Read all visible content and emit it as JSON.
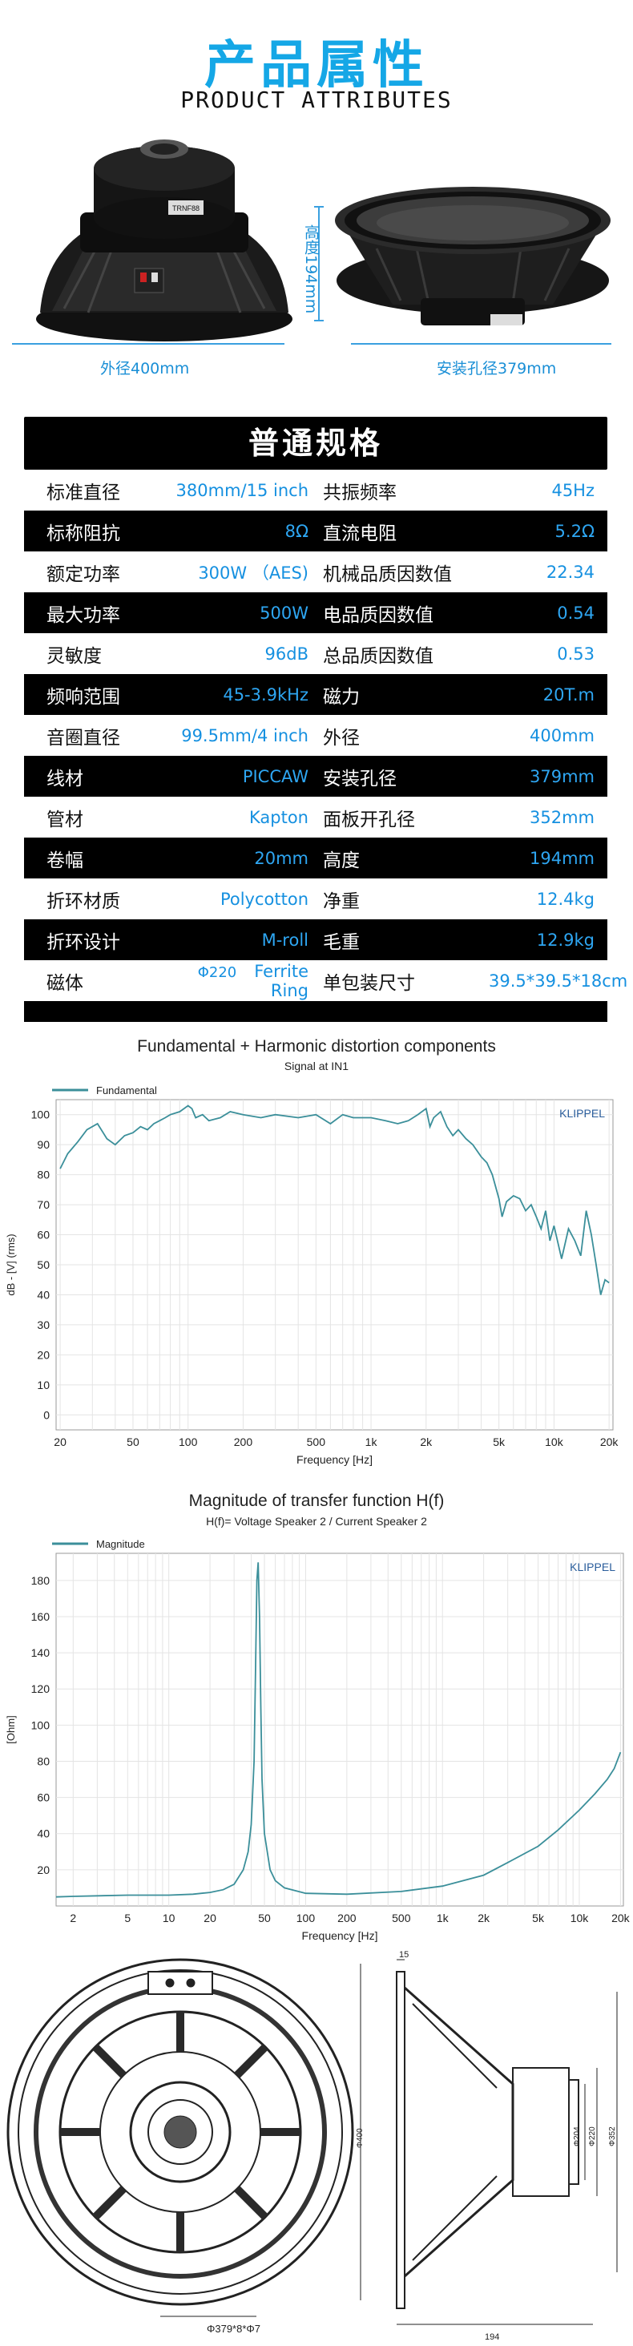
{
  "header": {
    "title_cn": "产品属性",
    "title_en": "PRODUCT ATTRIBUTES"
  },
  "product": {
    "label_height": "高度194mm",
    "label_outer": "外径400mm",
    "label_mount": "安装孔径379mm",
    "speaker_label": "TRNF88"
  },
  "specs": {
    "heading": "普通规格",
    "rows": [
      {
        "k1": "标准直径",
        "v1": "380mm/15 inch",
        "k2": "共振频率",
        "v2": "45Hz"
      },
      {
        "k1": "标称阻抗",
        "v1": "8Ω",
        "k2": "直流电阻",
        "v2": "5.2Ω"
      },
      {
        "k1": "额定功率",
        "v1": "300W （AES)",
        "k2": "机械品质因数值",
        "v2": "22.34"
      },
      {
        "k1": "最大功率",
        "v1": "500W",
        "k2": "电品质因数值",
        "v2": "0.54"
      },
      {
        "k1": "灵敏度",
        "v1": "96dB",
        "k2": "总品质因数值",
        "v2": "0.53"
      },
      {
        "k1": "频响范围",
        "v1": "45-3.9kHz",
        "k2": "磁力",
        "v2": "20T.m"
      },
      {
        "k1": "音圈直径",
        "v1": "99.5mm/4 inch",
        "k2": "外径",
        "v2": "400mm"
      },
      {
        "k1": "线材",
        "v1": "PICCAW",
        "k2": "安装孔径",
        "v2": "379mm"
      },
      {
        "k1": "管材",
        "v1": "Kapton",
        "k2": "面板开孔径",
        "v2": "352mm"
      },
      {
        "k1": "卷幅",
        "v1": "20mm",
        "k2": "高度",
        "v2": "194mm"
      },
      {
        "k1": "折环材质",
        "v1": "Polycotton",
        "k2": "净重",
        "v2": "12.4kg"
      },
      {
        "k1": "折环设计",
        "v1": "M-roll",
        "k2": "毛重",
        "v2": "12.9kg"
      },
      {
        "k1": "磁体",
        "v0": "Φ220",
        "v1": "Ferrite Ring",
        "k2": "单包装尺寸",
        "v2": "39.5*39.5*18cm"
      }
    ]
  },
  "chart_data": [
    {
      "type": "line",
      "title": "Fundamental + Harmonic distortion components",
      "subtitle": "Signal at IN1",
      "watermark": "KLIPPEL",
      "xlabel": "Frequency [Hz]",
      "ylabel": "dB - [V] (rms)",
      "xscale": "log",
      "xlim": [
        19,
        21000
      ],
      "ylim": [
        -5,
        105
      ],
      "xticks": [
        {
          "v": 20,
          "l": "20"
        },
        {
          "v": 50,
          "l": "50"
        },
        {
          "v": 100,
          "l": "100"
        },
        {
          "v": 200,
          "l": "200"
        },
        {
          "v": 500,
          "l": "500"
        },
        {
          "v": 1000,
          "l": "1k"
        },
        {
          "v": 2000,
          "l": "2k"
        },
        {
          "v": 5000,
          "l": "5k"
        },
        {
          "v": 10000,
          "l": "10k"
        },
        {
          "v": 20000,
          "l": "20k"
        }
      ],
      "yticks": [
        0,
        10,
        20,
        30,
        40,
        50,
        60,
        70,
        80,
        90,
        100
      ],
      "legend": "top-left",
      "color": "#3b8f9a",
      "series": [
        {
          "name": "Fundamental",
          "x": [
            20,
            22,
            25,
            28,
            32,
            36,
            40,
            45,
            50,
            55,
            60,
            65,
            70,
            75,
            80,
            90,
            100,
            105,
            110,
            120,
            130,
            150,
            170,
            200,
            250,
            300,
            400,
            500,
            600,
            700,
            800,
            1000,
            1200,
            1400,
            1600,
            1800,
            2000,
            2100,
            2200,
            2400,
            2600,
            2800,
            3000,
            3300,
            3600,
            4000,
            4300,
            4600,
            5000,
            5200,
            5500,
            6000,
            6500,
            7000,
            7500,
            8000,
            8500,
            9000,
            9500,
            10000,
            11000,
            12000,
            13000,
            14000,
            15000,
            16000,
            17000,
            18000,
            19000,
            20000
          ],
          "y": [
            82,
            87,
            91,
            95,
            97,
            92,
            90,
            93,
            94,
            96,
            95,
            97,
            98,
            99,
            100,
            101,
            103,
            102,
            99,
            100,
            98,
            99,
            101,
            100,
            99,
            100,
            99,
            100,
            97,
            100,
            99,
            99,
            98,
            97,
            98,
            100,
            102,
            96,
            99,
            101,
            96,
            93,
            95,
            92,
            90,
            86,
            84,
            80,
            72,
            66,
            71,
            73,
            72,
            68,
            70,
            66,
            62,
            68,
            58,
            63,
            52,
            62,
            58,
            53,
            68,
            60,
            50,
            40,
            45,
            44
          ]
        }
      ]
    },
    {
      "type": "line",
      "title": "Magnitude of transfer function H(f)",
      "subtitle": "H(f)= Voltage Speaker 2 / Current Speaker 2",
      "watermark": "KLIPPEL",
      "xlabel": "Frequency [Hz]",
      "ylabel": "[Ohm]",
      "xscale": "log",
      "xlim": [
        1.5,
        21000
      ],
      "ylim": [
        0,
        195
      ],
      "xticks": [
        {
          "v": 2,
          "l": "2"
        },
        {
          "v": 5,
          "l": "5"
        },
        {
          "v": 10,
          "l": "10"
        },
        {
          "v": 20,
          "l": "20"
        },
        {
          "v": 50,
          "l": "50"
        },
        {
          "v": 100,
          "l": "100"
        },
        {
          "v": 200,
          "l": "200"
        },
        {
          "v": 500,
          "l": "500"
        },
        {
          "v": 1000,
          "l": "1k"
        },
        {
          "v": 2000,
          "l": "2k"
        },
        {
          "v": 5000,
          "l": "5k"
        },
        {
          "v": 10000,
          "l": "10k"
        },
        {
          "v": 20000,
          "l": "20k"
        }
      ],
      "yticks": [
        20,
        40,
        60,
        80,
        100,
        120,
        140,
        160,
        180
      ],
      "legend": "top-left",
      "color": "#3b8f9a",
      "series": [
        {
          "name": "Magnitude",
          "x": [
            1.5,
            2,
            5,
            10,
            15,
            20,
            25,
            30,
            35,
            38,
            40,
            42,
            43,
            44,
            45,
            46,
            47,
            48,
            50,
            55,
            60,
            70,
            100,
            200,
            500,
            1000,
            2000,
            3000,
            5000,
            7000,
            10000,
            13000,
            16000,
            18000,
            20000
          ],
          "y": [
            5,
            5.3,
            6,
            6,
            6.5,
            7.5,
            9,
            12,
            20,
            30,
            45,
            80,
            130,
            180,
            190,
            160,
            110,
            70,
            40,
            20,
            14,
            10,
            7,
            6.5,
            8,
            11,
            17,
            24,
            33,
            42,
            53,
            62,
            70,
            76,
            85
          ]
        }
      ]
    }
  ],
  "drawing": {
    "dim_top": "15",
    "dim_bottom": "194",
    "dim_bolt": "Φ379*8*Φ7",
    "dim_d1": "Φ400",
    "dim_d2": "Φ204",
    "dim_d3": "Φ220",
    "dim_d4": "Φ352"
  }
}
